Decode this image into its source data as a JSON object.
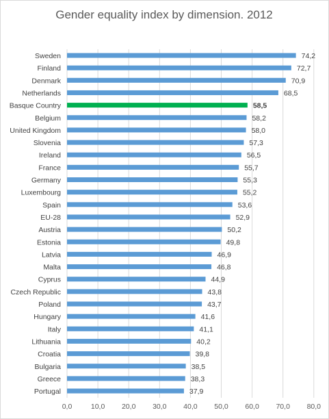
{
  "chart_data": {
    "type": "bar",
    "orientation": "horizontal",
    "title": "Gender equality index by dimension. 2012",
    "xlabel": "",
    "ylabel": "",
    "xlim": [
      0,
      80
    ],
    "ticks": [
      "0,0",
      "10,0",
      "20,0",
      "30,0",
      "40,0",
      "50,0",
      "60,0",
      "70,0",
      "80,0"
    ],
    "tick_values": [
      0,
      10,
      20,
      30,
      40,
      50,
      60,
      70,
      80
    ],
    "grid": true,
    "legend": "none",
    "colors": {
      "bar": "#5b9bd5",
      "highlight": "#00b050",
      "grid": "#d9d9d9"
    },
    "highlight_category": "Basque Country",
    "categories": [
      "Sweden",
      "Finland",
      "Denmark",
      "Netherlands",
      "Basque Country",
      "Belgium",
      "United Kingdom",
      "Slovenia",
      "Ireland",
      "France",
      "Germany",
      "Luxembourg",
      "Spain",
      "EU-28",
      "Austria",
      "Estonia",
      "Latvia",
      "Malta",
      "Cyprus",
      "Czech Republic",
      "Poland",
      "Hungary",
      "Italy",
      "Lithuania",
      "Croatia",
      "Bulgaria",
      "Greece",
      "Portugal"
    ],
    "values": [
      74.2,
      72.7,
      70.9,
      68.5,
      58.5,
      58.2,
      58.0,
      57.3,
      56.5,
      55.7,
      55.3,
      55.2,
      53.6,
      52.9,
      50.2,
      49.8,
      46.9,
      46.8,
      44.9,
      43.8,
      43.7,
      41.6,
      41.1,
      40.2,
      39.8,
      38.5,
      38.3,
      37.9
    ],
    "value_labels": [
      "74,2",
      "72,7",
      "70,9",
      "68,5",
      "58,5",
      "58,2",
      "58,0",
      "57,3",
      "56,5",
      "55,7",
      "55,3",
      "55,2",
      "53,6",
      "52,9",
      "50,2",
      "49,8",
      "46,9",
      "46,8",
      "44,9",
      "43,8",
      "43,7",
      "41,6",
      "41,1",
      "40,2",
      "39,8",
      "38,5",
      "38,3",
      "37,9"
    ]
  }
}
